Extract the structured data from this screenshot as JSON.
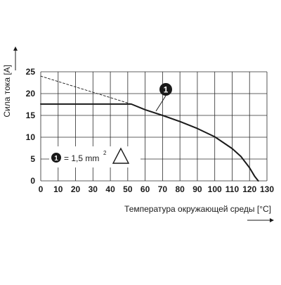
{
  "chart_data": {
    "type": "line",
    "xlabel": "Температура окружающей среды [°C]",
    "ylabel": "Сила тока [A]",
    "xlim": [
      0,
      130
    ],
    "ylim": [
      0,
      25
    ],
    "x_ticks": [
      "0",
      "10",
      "20",
      "30",
      "40",
      "50",
      "60",
      "70",
      "80",
      "90",
      "100",
      "110",
      "120",
      "130"
    ],
    "y_ticks": [
      "0",
      "5",
      "10",
      "15",
      "20",
      "25"
    ],
    "grid": true,
    "series": [
      {
        "name": "1",
        "style": "solid",
        "points": [
          [
            0,
            17.6
          ],
          [
            10,
            17.6
          ],
          [
            20,
            17.6
          ],
          [
            30,
            17.6
          ],
          [
            40,
            17.6
          ],
          [
            52,
            17.6
          ],
          [
            60,
            16.3
          ],
          [
            70,
            15.0
          ],
          [
            80,
            13.6
          ],
          [
            90,
            12.0
          ],
          [
            100,
            10.1
          ],
          [
            110,
            7.4
          ],
          [
            115,
            5.6
          ],
          [
            120,
            3.0
          ],
          [
            123,
            1.0
          ],
          [
            125,
            0
          ]
        ]
      },
      {
        "name": "",
        "style": "dashed",
        "points": [
          [
            0,
            24.0
          ],
          [
            52,
            17.6
          ]
        ]
      }
    ],
    "annotations": {
      "marker_label": "1",
      "legend_text": "= 1,5 mm",
      "legend_superscript": "2"
    }
  }
}
